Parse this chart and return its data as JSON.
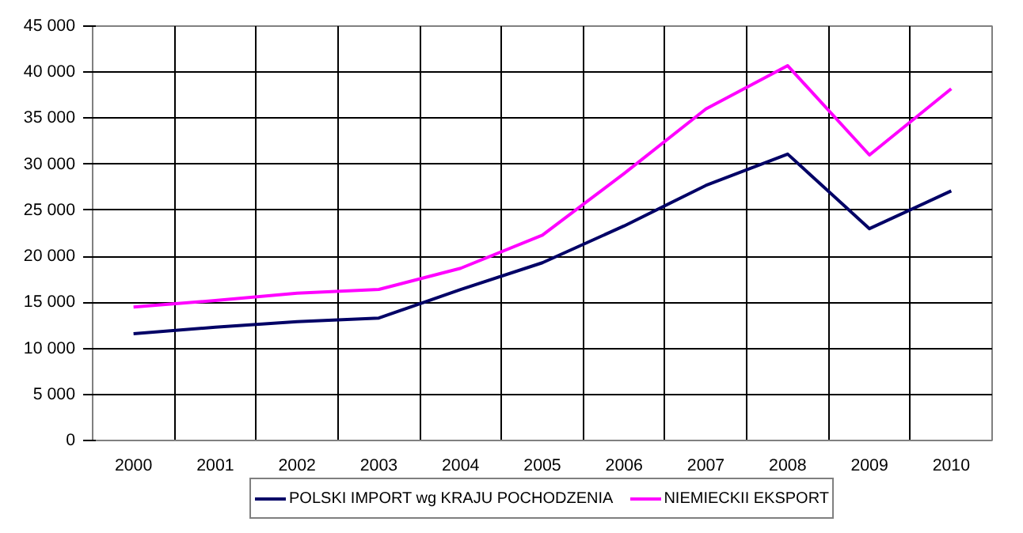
{
  "chart_data": {
    "type": "line",
    "categories": [
      "2000",
      "2001",
      "2002",
      "2003",
      "2004",
      "2005",
      "2006",
      "2007",
      "2008",
      "2009",
      "2010"
    ],
    "series": [
      {
        "name": "POLSKI IMPORT wg KRAJU POCHODZENIA",
        "color": "#000066",
        "values": [
          11600,
          12300,
          12900,
          13300,
          16400,
          19300,
          23300,
          27700,
          31100,
          23000,
          27100
        ]
      },
      {
        "name": "NIEMIECKII EKSPORT",
        "color": "#ff00ff",
        "values": [
          14500,
          15200,
          16000,
          16400,
          18700,
          22300,
          29000,
          36000,
          40700,
          31000,
          38200
        ]
      }
    ],
    "ylim": [
      0,
      45000
    ],
    "yticks": [
      {
        "value": 0,
        "label": "0"
      },
      {
        "value": 5000,
        "label": "5 000"
      },
      {
        "value": 10000,
        "label": "10 000"
      },
      {
        "value": 15000,
        "label": "15 000"
      },
      {
        "value": 20000,
        "label": "20 000"
      },
      {
        "value": 25000,
        "label": "25 000"
      },
      {
        "value": 30000,
        "label": "30 000"
      },
      {
        "value": 35000,
        "label": "35 000"
      },
      {
        "value": 40000,
        "label": "40 000"
      },
      {
        "value": 45000,
        "label": "45 000"
      }
    ],
    "grid": true,
    "legend": "bottom",
    "marker": "none",
    "line_style": "solid"
  }
}
